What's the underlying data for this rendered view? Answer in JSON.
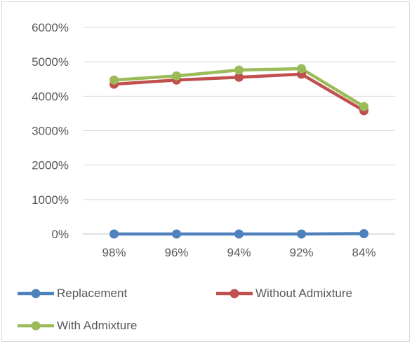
{
  "chart_data": {
    "type": "line",
    "title": "",
    "xlabel": "",
    "ylabel": "",
    "categories": [
      "98%",
      "96%",
      "94%",
      "92%",
      "84%"
    ],
    "ylim": [
      0,
      6000
    ],
    "yticks": [
      0,
      1000,
      2000,
      3000,
      4000,
      5000,
      6000
    ],
    "ytick_labels": [
      "0%",
      "1000%",
      "2000%",
      "3000%",
      "4000%",
      "5000%",
      "6000%"
    ],
    "grid": true,
    "legend_position": "bottom",
    "series": [
      {
        "name": "Replacement",
        "color": "#4f81bd",
        "values": [
          0,
          0,
          0,
          0,
          10
        ]
      },
      {
        "name": "Without Admixture",
        "color": "#c0504d",
        "values": [
          4350,
          4470,
          4550,
          4640,
          3580
        ]
      },
      {
        "name": "With Admixture",
        "color": "#9bbb59",
        "values": [
          4470,
          4590,
          4760,
          4800,
          3700
        ]
      }
    ]
  }
}
